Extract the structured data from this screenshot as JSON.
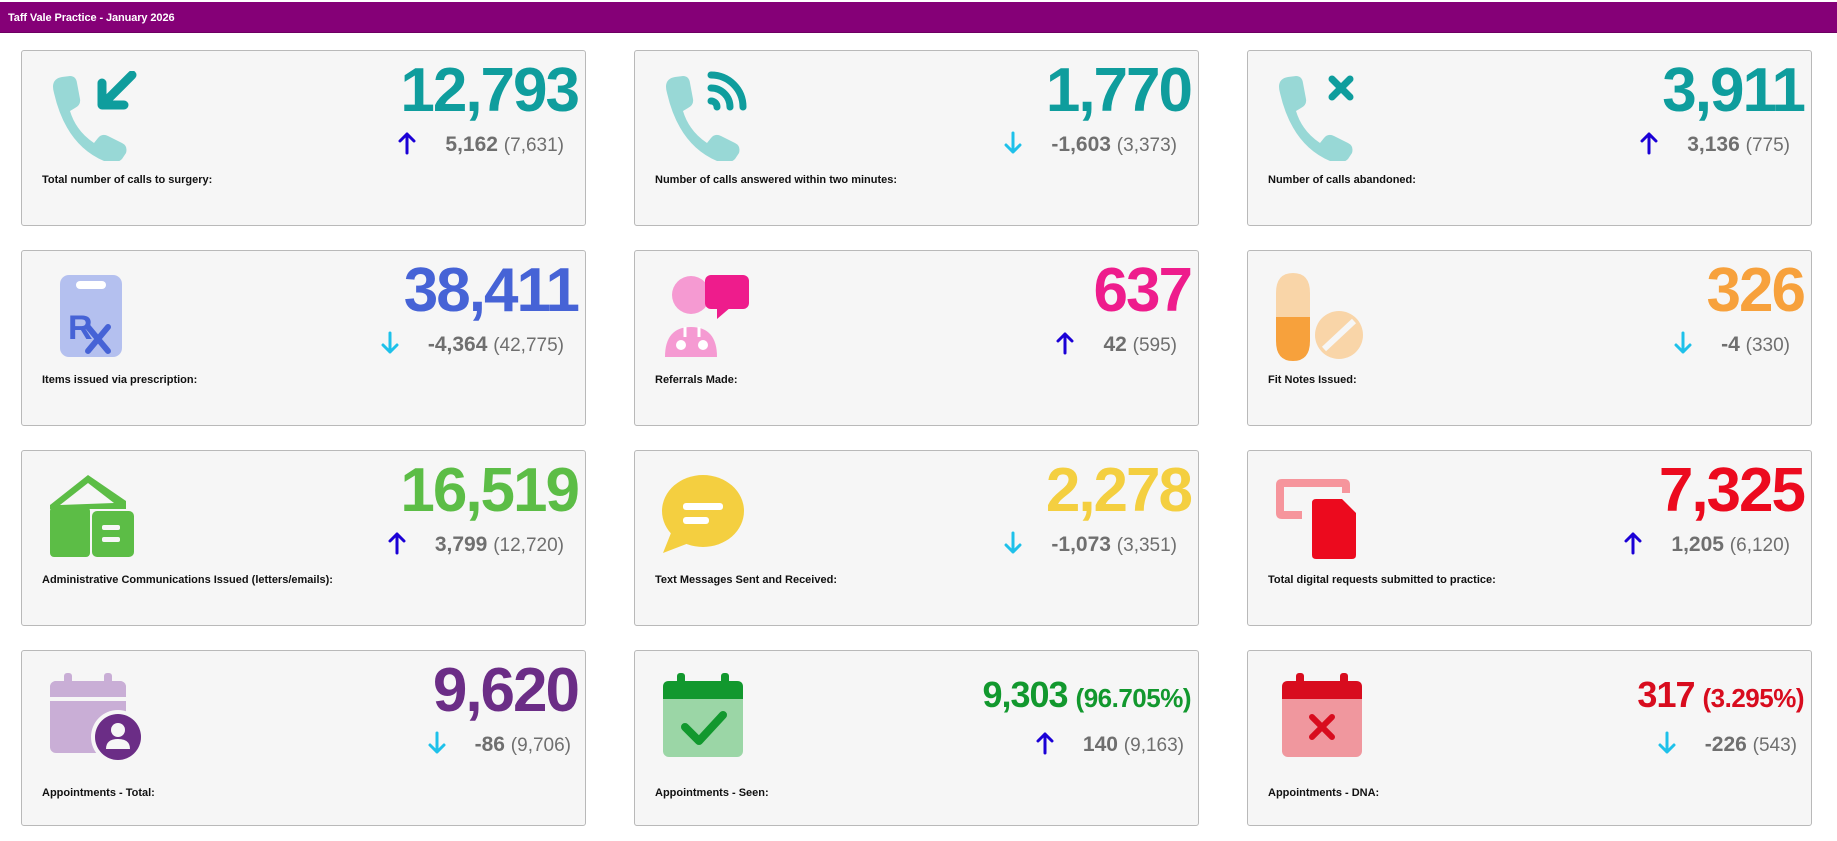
{
  "header": {
    "title": "Taff Vale Practice - January 2026"
  },
  "cards": [
    {
      "value": "12,793",
      "change": "5,162",
      "previous": "(7,631)",
      "direction": "up",
      "label": "Total number of calls to surgery:",
      "color": "#0f9d9d",
      "icon": "phone-incoming-icon"
    },
    {
      "value": "1,770",
      "change": "-1,603",
      "previous": "(3,373)",
      "direction": "down",
      "label": "Number of calls answered within two minutes:",
      "color": "#0f9d9d",
      "icon": "phone-signal-icon"
    },
    {
      "value": "3,911",
      "change": "3,136",
      "previous": "(775)",
      "direction": "up",
      "label": "Number of calls abandoned:",
      "color": "#0f9d9d",
      "icon": "phone-cancelled-icon"
    },
    {
      "value": "38,411",
      "change": "-4,364",
      "previous": "(42,775)",
      "direction": "down",
      "label": "Items issued via prescription:",
      "color": "#4663d6",
      "icon": "prescription-icon"
    },
    {
      "value": "637",
      "change": "42",
      "previous": "(595)",
      "direction": "up",
      "label": "Referrals Made:",
      "color": "#ee1c8c",
      "icon": "doctor-chat-icon"
    },
    {
      "value": "326",
      "change": "-4",
      "previous": "(330)",
      "direction": "down",
      "label": "Fit Notes Issued:",
      "color": "#f7a13c",
      "icon": "pills-icon"
    },
    {
      "value": "16,519",
      "change": "3,799",
      "previous": "(12,720)",
      "direction": "up",
      "label": "Administrative Communications Issued (letters/emails):",
      "color": "#5cbd46",
      "icon": "mail-building-icon"
    },
    {
      "value": "2,278",
      "change": "-1,073",
      "previous": "(3,351)",
      "direction": "down",
      "label": "Text Messages Sent and Received:",
      "color": "#f4cf40",
      "icon": "message-bubble-icon"
    },
    {
      "value": "7,325",
      "change": "1,205",
      "previous": "(6,120)",
      "direction": "up",
      "label": "Total digital requests submitted to practice:",
      "color": "#ec0a1e",
      "icon": "digital-document-icon"
    },
    {
      "value": "9,620",
      "change": "-86",
      "previous": "(9,706)",
      "direction": "down",
      "label": "Appointments - Total:",
      "color": "#6b2d86",
      "icon": "calendar-user-icon"
    },
    {
      "value": "9,303",
      "percent": "(96.705%)",
      "change": "140",
      "previous": "(9,163)",
      "direction": "up",
      "label": "Appointments - Seen:",
      "color": "#12982e",
      "icon": "calendar-check-icon"
    },
    {
      "value": "317",
      "percent": "(3.295%)",
      "change": "-226",
      "previous": "(543)",
      "direction": "down",
      "label": "Appointments - DNA:",
      "color": "#d80c1e",
      "icon": "calendar-cross-icon"
    }
  ],
  "arrow_colors": {
    "up": "#1b00d6",
    "down": "#1ec1ea"
  }
}
